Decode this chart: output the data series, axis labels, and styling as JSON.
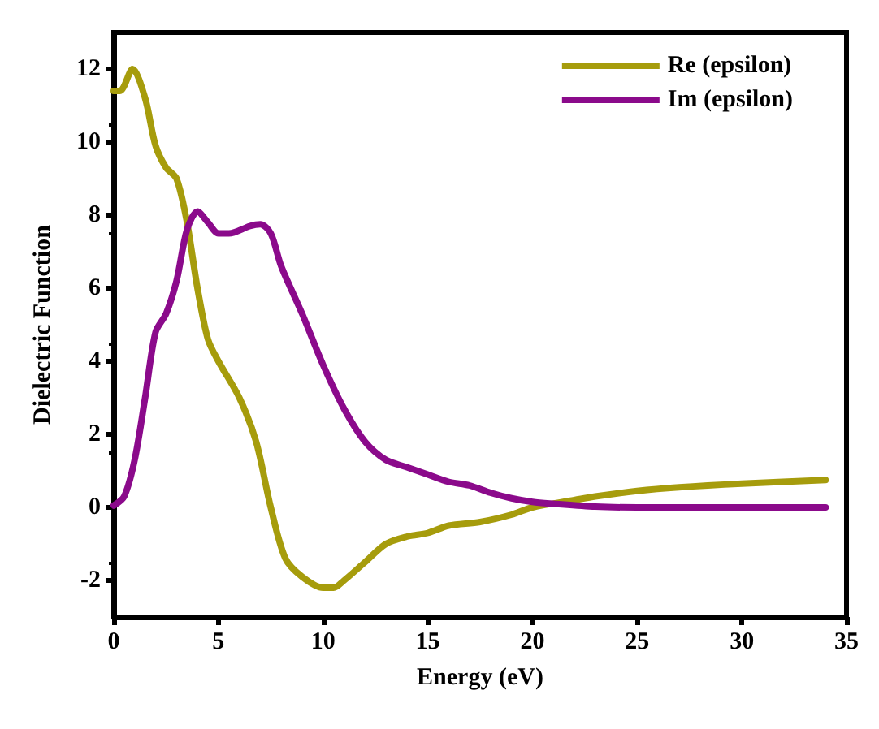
{
  "chart_data": {
    "type": "line",
    "xlabel": "Energy (eV)",
    "ylabel": "Dielectric Function",
    "xlim": [
      0,
      35
    ],
    "xticks": [
      0,
      5,
      10,
      15,
      20,
      25,
      30,
      35
    ],
    "ylim": [
      -3,
      13
    ],
    "yticks": [
      -2,
      0,
      2,
      4,
      6,
      8,
      10,
      12
    ],
    "legend": "top right",
    "grid": false,
    "marker": "none",
    "line_style": "solid",
    "series": [
      {
        "name": "Re (epsilon)",
        "color": "#a69c0c",
        "x": [
          0,
          0.3,
          0.9,
          1.5,
          2.0,
          2.5,
          3.0,
          3.5,
          4.0,
          4.5,
          5,
          6,
          6.8,
          7.5,
          8.2,
          9,
          10,
          10.5,
          11,
          12,
          13,
          14,
          15,
          16,
          17.5,
          19,
          20,
          22,
          23,
          25,
          27,
          30,
          34
        ],
        "values": [
          11.4,
          11.4,
          12.0,
          11.2,
          9.9,
          9.3,
          9.0,
          7.8,
          6.0,
          4.6,
          4.0,
          3.0,
          1.8,
          0,
          -1.4,
          -1.9,
          -2.2,
          -2.2,
          -2.0,
          -1.5,
          -1.0,
          -0.8,
          -0.7,
          -0.5,
          -0.4,
          -0.2,
          0,
          0.2,
          0.3,
          0.45,
          0.55,
          0.65,
          0.75
        ]
      },
      {
        "name": "Im (epsilon)",
        "color": "#8b0a8b",
        "x": [
          0,
          0.5,
          1,
          1.5,
          2,
          2.5,
          3,
          3.5,
          4,
          4.5,
          5,
          5.5,
          6.5,
          7,
          7.5,
          8,
          9,
          10,
          11,
          12,
          13,
          14,
          15,
          16,
          17,
          18,
          19,
          20,
          21,
          23,
          25,
          34
        ],
        "values": [
          0.05,
          0.3,
          1.3,
          3.0,
          4.8,
          5.3,
          6.2,
          7.6,
          8.1,
          7.8,
          7.5,
          7.5,
          7.7,
          7.75,
          7.5,
          6.6,
          5.3,
          3.9,
          2.7,
          1.8,
          1.3,
          1.1,
          0.9,
          0.7,
          0.6,
          0.4,
          0.25,
          0.15,
          0.1,
          0.02,
          0,
          0
        ]
      }
    ]
  }
}
